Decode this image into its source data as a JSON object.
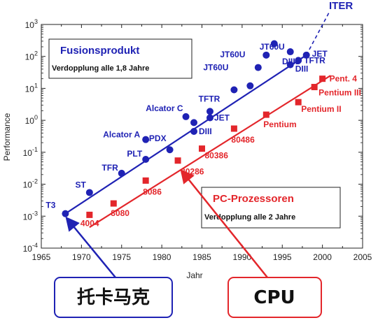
{
  "chart_data": {
    "type": "scatter",
    "ylabel": "Performance",
    "xlabel": "Jahr",
    "x_ticks": [
      "1965",
      "1970",
      "1975",
      "1980",
      "1985",
      "1990",
      "1995",
      "2000",
      "2005"
    ],
    "y_ticks": [
      {
        "base": "10",
        "exp": "3"
      },
      {
        "base": "10",
        "exp": "2"
      },
      {
        "base": "10",
        "exp": "1"
      },
      {
        "base": "10",
        "exp": "0"
      },
      {
        "base": "10",
        "exp": "-1"
      },
      {
        "base": "10",
        "exp": "-2"
      },
      {
        "base": "10",
        "exp": "-3"
      },
      {
        "base": "10",
        "exp": "-4"
      }
    ],
    "xlim": [
      1965,
      2005
    ],
    "ylim": [
      0.0001,
      1000
    ],
    "y_scale": "log",
    "colors": {
      "fusion": "#1f22b4",
      "cpu": "#e3262b"
    },
    "fusion": {
      "box_title": "Fusionsprodukt",
      "box_subtitle": "Verdopplung alle 1,8 Jahre",
      "trend": {
        "from": [
          1968,
          0.0012
        ],
        "to": [
          1998,
          110
        ]
      },
      "projection_label": "ITER",
      "points": [
        {
          "x": 1968,
          "y": 0.0012,
          "label": "T3"
        },
        {
          "x": 1971,
          "y": 0.0055,
          "label": "ST"
        },
        {
          "x": 1975,
          "y": 0.022,
          "label": "TFR"
        },
        {
          "x": 1978,
          "y": 0.06,
          "label": "PLT"
        },
        {
          "x": 1978,
          "y": 0.25,
          "label": "Alcator A"
        },
        {
          "x": 1981,
          "y": 0.12,
          "label": "PDX"
        },
        {
          "x": 1983,
          "y": 1.3,
          "label": "Alcator C"
        },
        {
          "x": 1984,
          "y": 0.85,
          "label": ""
        },
        {
          "x": 1984,
          "y": 0.45,
          "label": "DIII"
        },
        {
          "x": 1986,
          "y": 1.9,
          "label": "TFTR"
        },
        {
          "x": 1986,
          "y": 1.2,
          "label": "JET"
        },
        {
          "x": 1989,
          "y": 9,
          "label": "JT60U"
        },
        {
          "x": 1991,
          "y": 12,
          "label": ""
        },
        {
          "x": 1992,
          "y": 45,
          "label": ""
        },
        {
          "x": 1993,
          "y": 110,
          "label": ""
        },
        {
          "x": 1994,
          "y": 250,
          "label": ""
        },
        {
          "x": 1996,
          "y": 140,
          "label": "JT60U"
        },
        {
          "x": 1996,
          "y": 55,
          "label": "DIII"
        },
        {
          "x": 1997,
          "y": 75,
          "label": "TFTR"
        },
        {
          "x": 1998,
          "y": 110,
          "label": "JET"
        }
      ],
      "extra_labels": [
        {
          "x": 1989,
          "text": "JT60U"
        },
        {
          "x": 1996,
          "text": "DIIID"
        }
      ]
    },
    "cpu": {
      "box_title": "PC-Prozessoren",
      "box_subtitle": "Verdopplung alle 2 Jahre",
      "trend": {
        "from": [
          1971,
          0.00045
        ],
        "to": [
          2001,
          25
        ]
      },
      "points": [
        {
          "x": 1971,
          "y": 0.0011,
          "label": "4004"
        },
        {
          "x": 1974,
          "y": 0.0025,
          "label": "8080"
        },
        {
          "x": 1978,
          "y": 0.013,
          "label": "8086"
        },
        {
          "x": 1982,
          "y": 0.055,
          "label": "80286"
        },
        {
          "x": 1985,
          "y": 0.13,
          "label": "80386"
        },
        {
          "x": 1989,
          "y": 0.55,
          "label": "80486"
        },
        {
          "x": 1993,
          "y": 1.5,
          "label": "Pentium"
        },
        {
          "x": 1997,
          "y": 3.7,
          "label": "Pentium II"
        },
        {
          "x": 1999,
          "y": 11,
          "label": "Pentium III"
        },
        {
          "x": 2000,
          "y": 20,
          "label": "Pent. 4"
        }
      ]
    }
  },
  "callouts": {
    "tokamak": "托卡马克",
    "cpu": "CPU"
  }
}
